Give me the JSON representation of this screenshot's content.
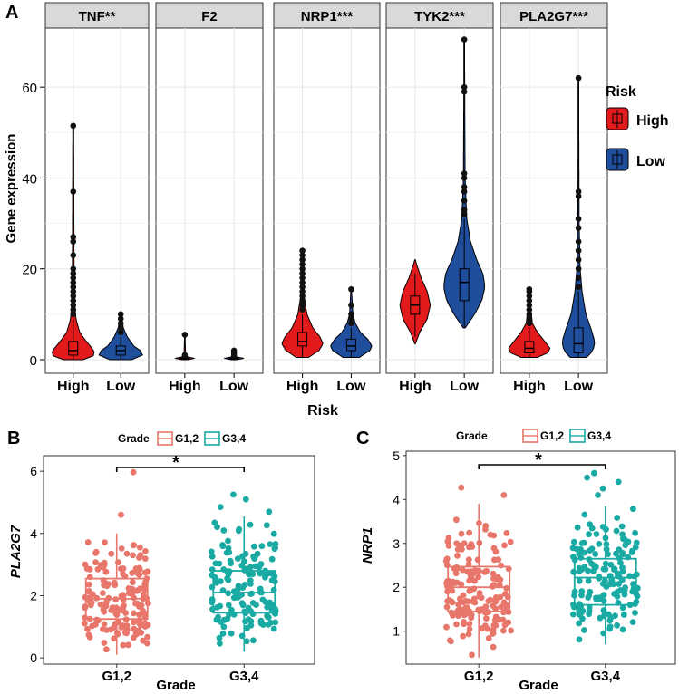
{
  "panel_labels": {
    "a": "A",
    "b": "B",
    "c": "C"
  },
  "colors": {
    "high": "#e31a1c",
    "low": "#1f4e9c",
    "g12": "#e8766b",
    "g34": "#1aaaa4",
    "strip": "#d9d9d9",
    "grid": "#e6e6e6",
    "axis": "#000000"
  },
  "chart_data": [
    {
      "type": "violin",
      "ylabel": "Gene expression",
      "xlabel": "Risk",
      "ylim": [
        -3,
        73
      ],
      "yticks": [
        0,
        20,
        40,
        60
      ],
      "categories": [
        "High",
        "Low"
      ],
      "legend": {
        "title": "Risk",
        "entries": [
          "High",
          "Low"
        ],
        "position": "right"
      },
      "facets": [
        {
          "title": "TNF**",
          "high": {
            "q1": 1,
            "median": 2,
            "q3": 4,
            "min": 0,
            "max": 9,
            "width": 1.0,
            "profile": [
              [
                0,
                0.45
              ],
              [
                1,
                1
              ],
              [
                2,
                0.95
              ],
              [
                4,
                0.6
              ],
              [
                6,
                0.3
              ],
              [
                9,
                0.12
              ],
              [
                15,
                0.04
              ],
              [
                51.5,
                0.02
              ]
            ],
            "outliers": [
              10,
              11,
              12,
              13,
              14,
              15,
              16,
              17,
              18,
              19,
              20,
              23,
              26,
              27,
              37,
              51.5
            ]
          },
          "low": {
            "q1": 1,
            "median": 2,
            "q3": 3,
            "min": 0,
            "max": 5,
            "width": 1.0,
            "profile": [
              [
                0,
                0.5
              ],
              [
                1,
                1
              ],
              [
                2,
                0.9
              ],
              [
                3,
                0.6
              ],
              [
                5,
                0.3
              ],
              [
                7,
                0.12
              ],
              [
                10,
                0.02
              ]
            ],
            "outliers": [
              6,
              7,
              8,
              9,
              10
            ]
          }
        },
        {
          "title": "F2",
          "high": {
            "q1": 0.2,
            "median": 0.3,
            "q3": 0.4,
            "min": 0,
            "max": 0.6,
            "width": 0.45,
            "profile": [
              [
                0,
                0.3
              ],
              [
                0.3,
                1
              ],
              [
                0.6,
                0.3
              ],
              [
                1,
                0.08
              ],
              [
                5.5,
                0.02
              ]
            ],
            "outliers": [
              1,
              5.5
            ]
          },
          "low": {
            "q1": 0.2,
            "median": 0.3,
            "q3": 0.4,
            "min": 0,
            "max": 0.6,
            "width": 0.45,
            "profile": [
              [
                0,
                0.3
              ],
              [
                0.3,
                1
              ],
              [
                0.6,
                0.3
              ],
              [
                1,
                0.08
              ],
              [
                2,
                0.02
              ]
            ],
            "outliers": [
              1,
              1.5,
              2
            ]
          }
        },
        {
          "title": "NRP1***",
          "high": {
            "q1": 3,
            "median": 4,
            "q3": 6,
            "min": 0.5,
            "max": 10,
            "width": 0.95,
            "profile": [
              [
                0.5,
                0.3
              ],
              [
                2,
                0.8
              ],
              [
                3.5,
                1
              ],
              [
                5,
                0.85
              ],
              [
                7,
                0.5
              ],
              [
                10,
                0.22
              ],
              [
                14,
                0.08
              ],
              [
                24,
                0.02
              ]
            ],
            "outliers": [
              11,
              12,
              13,
              14,
              15,
              16,
              17,
              18,
              19,
              20,
              21,
              22,
              23,
              24
            ]
          },
          "low": {
            "q1": 2,
            "median": 3,
            "q3": 4.5,
            "min": 0.5,
            "max": 7,
            "width": 0.95,
            "profile": [
              [
                0.5,
                0.4
              ],
              [
                2,
                0.9
              ],
              [
                3,
                1
              ],
              [
                4.5,
                0.8
              ],
              [
                6,
                0.45
              ],
              [
                8,
                0.2
              ],
              [
                10,
                0.08
              ],
              [
                15,
                0.02
              ]
            ],
            "outliers": [
              8,
              9,
              10,
              12,
              15.5
            ]
          }
        },
        {
          "title": "TYK2***",
          "high": {
            "q1": 10,
            "median": 12,
            "q3": 14,
            "min": 5,
            "max": 19,
            "width": 0.7,
            "profile": [
              [
                3.5,
                0.02
              ],
              [
                6,
                0.3
              ],
              [
                9,
                0.8
              ],
              [
                12,
                1
              ],
              [
                15,
                0.8
              ],
              [
                18,
                0.4
              ],
              [
                21,
                0.1
              ],
              [
                22,
                0.02
              ]
            ],
            "outliers": []
          },
          "low": {
            "q1": 13,
            "median": 17,
            "q3": 20,
            "min": 7,
            "max": 31,
            "width": 0.95,
            "profile": [
              [
                7,
                0.05
              ],
              [
                10,
                0.5
              ],
              [
                13,
                0.85
              ],
              [
                16,
                1
              ],
              [
                19,
                0.9
              ],
              [
                22,
                0.6
              ],
              [
                26,
                0.3
              ],
              [
                31,
                0.12
              ],
              [
                40,
                0.04
              ],
              [
                71,
                0.01
              ]
            ],
            "outliers": [
              32,
              33,
              35,
              37,
              38,
              40,
              41,
              59,
              60,
              70.5
            ]
          }
        },
        {
          "title": "PLA2G7***",
          "high": {
            "q1": 1.5,
            "median": 2.5,
            "q3": 4,
            "min": 0.5,
            "max": 7,
            "width": 0.95,
            "profile": [
              [
                0.5,
                0.4
              ],
              [
                1.5,
                0.9
              ],
              [
                2.5,
                1
              ],
              [
                4,
                0.75
              ],
              [
                6,
                0.4
              ],
              [
                8,
                0.15
              ],
              [
                12,
                0.05
              ],
              [
                15.5,
                0.02
              ]
            ],
            "outliers": [
              8,
              9,
              10,
              11,
              12,
              13,
              14,
              15,
              15.5
            ]
          },
          "low": {
            "q1": 1.5,
            "median": 3.5,
            "q3": 7,
            "min": 0.5,
            "max": 15,
            "width": 0.75,
            "profile": [
              [
                0.5,
                0.5
              ],
              [
                2,
                0.9
              ],
              [
                4,
                1
              ],
              [
                7,
                0.75
              ],
              [
                10,
                0.45
              ],
              [
                15,
                0.22
              ],
              [
                20,
                0.1
              ],
              [
                30,
                0.04
              ],
              [
                62,
                0.01
              ]
            ],
            "outliers": [
              16,
              18,
              20,
              22,
              24,
              26,
              29,
              31,
              36,
              37,
              62
            ]
          }
        }
      ]
    },
    {
      "type": "box_strip",
      "ylabel": "PLA2G7",
      "xlabel": "Grade",
      "ylim": [
        -0.2,
        6.5
      ],
      "yticks": [
        0,
        2,
        4,
        6
      ],
      "categories": [
        "G1,2",
        "G3,4"
      ],
      "legend": {
        "title": "Grade",
        "entries": [
          "G1,2",
          "G3,4"
        ],
        "position": "top"
      },
      "significance": "*",
      "boxes": [
        {
          "q1": 1.25,
          "median": 1.9,
          "q3": 2.55,
          "min": 0.1,
          "max": 4.0,
          "n": 170,
          "seed": 11,
          "outliers": [
            4.6,
            5.97
          ]
        },
        {
          "q1": 1.45,
          "median": 2.1,
          "q3": 2.8,
          "min": 0.2,
          "max": 4.55,
          "n": 150,
          "seed": 29,
          "outliers": [
            4.7,
            4.85,
            5.1,
            5.25
          ]
        }
      ]
    },
    {
      "type": "box_strip",
      "ylabel": "NRP1",
      "xlabel": "Grade",
      "ylim": [
        0.25,
        5.1
      ],
      "yticks": [
        1,
        2,
        3,
        4,
        5
      ],
      "categories": [
        "G1,2",
        "G3,4"
      ],
      "legend": {
        "title": "Grade",
        "entries": [
          "G1,2",
          "G3,4"
        ],
        "position": "top"
      },
      "significance": "*",
      "boxes": [
        {
          "q1": 1.45,
          "median": 2.0,
          "q3": 2.47,
          "min": 0.4,
          "max": 3.9,
          "n": 170,
          "seed": 47,
          "outliers": [
            4.1,
            4.27
          ]
        },
        {
          "q1": 1.6,
          "median": 2.22,
          "q3": 2.65,
          "min": 0.7,
          "max": 3.85,
          "n": 150,
          "seed": 83,
          "outliers": [
            4.1,
            4.25,
            4.4,
            4.5,
            4.6
          ]
        }
      ]
    }
  ]
}
